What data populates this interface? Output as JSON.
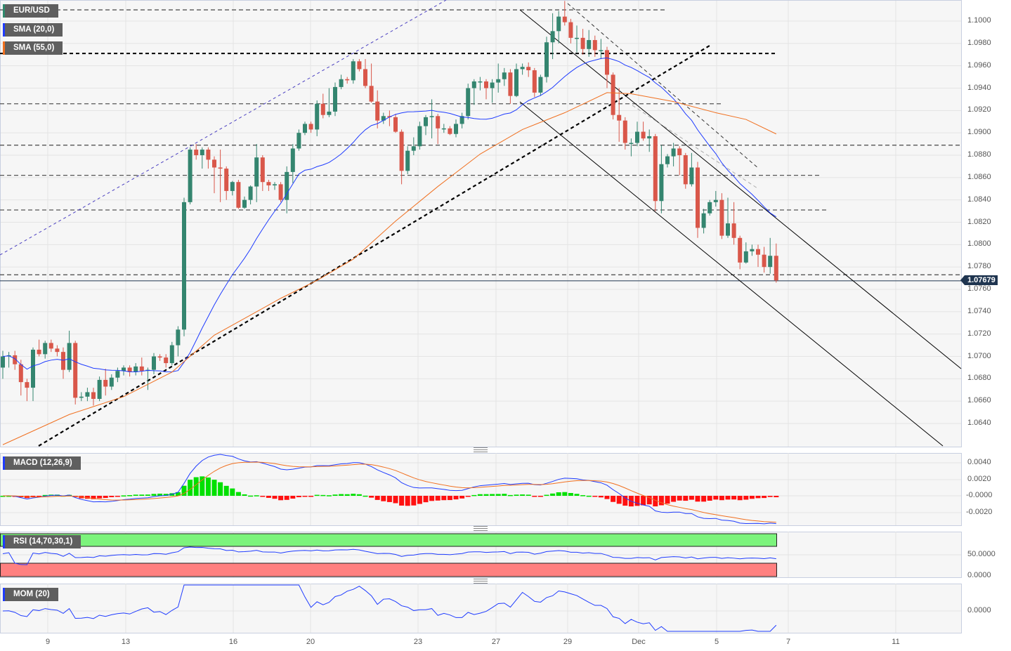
{
  "symbol": "EUR/USD",
  "legends": {
    "price": "EUR/USD",
    "sma20": "SMA (20,0)",
    "sma55": "SMA (55,0)",
    "macd": "MACD (12,26,9)",
    "rsi": "RSI (14,70,30,1)",
    "mom": "MOM (20)"
  },
  "colors": {
    "up": "#34856f",
    "down": "#d9574a",
    "sma20": "#1f3cff",
    "sma55": "#f07020",
    "macd_line": "#1f3cff",
    "signal_line": "#f07020",
    "hist_up": "#00e000",
    "hist_down": "#ff1010",
    "rsi_overbought_band": "#7cf47c",
    "rsi_oversold_band": "#ff8080",
    "last_price_bg": "#1f3550"
  },
  "last_price": "1.07679",
  "price_axis_ticks": [
    "1.1000",
    "1.0980",
    "1.0960",
    "1.0940",
    "1.0920",
    "1.0900",
    "1.0880",
    "1.0860",
    "1.0840",
    "1.0820",
    "1.0800",
    "1.0780",
    "1.0760",
    "1.0740",
    "1.0720",
    "1.0700",
    "1.0680",
    "1.0660",
    "1.0640"
  ],
  "macd_axis_ticks": [
    "0.0040",
    "0.0020",
    "-0.0000",
    "-0.0020"
  ],
  "rsi_axis_ticks": [
    "50.0000",
    "0.0000"
  ],
  "mom_axis_ticks": [
    "0.0000"
  ],
  "x_axis_labels": [
    "9",
    "13",
    "16",
    "20",
    "23",
    "27",
    "29",
    "Dec",
    "5",
    "7",
    "11"
  ],
  "chart_data": {
    "type": "candlestick",
    "title": "EUR/USD",
    "ylim": [
      1.0622,
      1.1018
    ],
    "grid": true,
    "indicators": [
      "SMA (20,0)",
      "SMA (55,0)",
      "MACD (12,26,9)",
      "RSI (14,70,30,1)",
      "MOM (20)"
    ],
    "rsi_levels": [
      70,
      30
    ],
    "horizontal_levels": [
      1.101,
      1.0971,
      1.0926,
      1.0889,
      1.0862,
      1.0831,
      1.0773
    ],
    "ohlc": [
      [
        1.069,
        1.0705,
        1.068,
        1.07
      ],
      [
        1.07,
        1.0704,
        1.069,
        1.0701
      ],
      [
        1.0701,
        1.0705,
        1.0688,
        1.0693
      ],
      [
        1.0693,
        1.0697,
        1.0665,
        1.0677
      ],
      [
        1.0677,
        1.068,
        1.066,
        1.0672
      ],
      [
        1.0672,
        1.0708,
        1.066,
        1.0706
      ],
      [
        1.0706,
        1.0715,
        1.07,
        1.0702
      ],
      [
        1.0702,
        1.0714,
        1.0698,
        1.0712
      ],
      [
        1.0712,
        1.0715,
        1.0704,
        1.0707
      ],
      [
        1.0707,
        1.071,
        1.07,
        1.0704
      ],
      [
        1.0704,
        1.0708,
        1.068,
        1.0688
      ],
      [
        1.0688,
        1.0723,
        1.0686,
        1.0712
      ],
      [
        1.0712,
        1.0714,
        1.0657,
        1.0663
      ],
      [
        1.0663,
        1.0668,
        1.066,
        1.0664
      ],
      [
        1.0664,
        1.0672,
        1.066,
        1.0668
      ],
      [
        1.0668,
        1.0672,
        1.0656,
        1.0662
      ],
      [
        1.0662,
        1.0682,
        1.066,
        1.0679
      ],
      [
        1.0679,
        1.0689,
        1.0665,
        1.0673
      ],
      [
        1.0673,
        1.0684,
        1.067,
        1.0681
      ],
      [
        1.0681,
        1.069,
        1.0677,
        1.0687
      ],
      [
        1.0687,
        1.0692,
        1.0683,
        1.069
      ],
      [
        1.069,
        1.0692,
        1.0682,
        1.0686
      ],
      [
        1.0686,
        1.0694,
        1.0683,
        1.0691
      ],
      [
        1.0691,
        1.0699,
        1.0683,
        1.0687
      ],
      [
        1.0687,
        1.069,
        1.067,
        1.0688
      ],
      [
        1.0688,
        1.0703,
        1.0684,
        1.07
      ],
      [
        1.07,
        1.0702,
        1.0696,
        1.0699
      ],
      [
        1.0699,
        1.0702,
        1.069,
        1.0694
      ],
      [
        1.0694,
        1.0713,
        1.0692,
        1.071
      ],
      [
        1.071,
        1.0727,
        1.07,
        1.0724
      ],
      [
        1.0724,
        1.0842,
        1.0718,
        1.0838
      ],
      [
        1.0838,
        1.0887,
        1.0836,
        1.0885
      ],
      [
        1.0885,
        1.089,
        1.0876,
        1.088
      ],
      [
        1.088,
        1.0887,
        1.0868,
        1.0885
      ],
      [
        1.0885,
        1.0887,
        1.0868,
        1.0876
      ],
      [
        1.0876,
        1.0879,
        1.0846,
        1.0869
      ],
      [
        1.0869,
        1.0885,
        1.0838,
        1.0868
      ],
      [
        1.0868,
        1.087,
        1.084,
        1.0848
      ],
      [
        1.0848,
        1.0857,
        1.0844,
        1.0856
      ],
      [
        1.0856,
        1.0858,
        1.0832,
        1.0833
      ],
      [
        1.0833,
        1.0843,
        1.0832,
        1.084
      ],
      [
        1.084,
        1.0853,
        1.0836,
        1.0852
      ],
      [
        1.0852,
        1.089,
        1.0838,
        1.0878
      ],
      [
        1.0878,
        1.088,
        1.0848,
        1.0856
      ],
      [
        1.0856,
        1.0858,
        1.0848,
        1.0853
      ],
      [
        1.0853,
        1.0856,
        1.0849,
        1.0854
      ],
      [
        1.0854,
        1.0856,
        1.0838,
        1.084
      ],
      [
        1.084,
        1.087,
        1.0828,
        1.0865
      ],
      [
        1.0865,
        1.089,
        1.0855,
        1.0886
      ],
      [
        1.0886,
        1.0903,
        1.0884,
        1.09
      ],
      [
        1.09,
        1.091,
        1.0898,
        1.0908
      ],
      [
        1.0908,
        1.091,
        1.09,
        1.0903
      ],
      [
        1.0903,
        1.0929,
        1.0897,
        1.0926
      ],
      [
        1.0926,
        1.0935,
        1.0913,
        1.0916
      ],
      [
        1.0916,
        1.094,
        1.0914,
        1.0919
      ],
      [
        1.0919,
        1.0945,
        1.0915,
        1.0941
      ],
      [
        1.0941,
        1.0952,
        1.0939,
        1.0948
      ],
      [
        1.0948,
        1.095,
        1.0944,
        1.0947
      ],
      [
        1.0947,
        1.0966,
        1.0944,
        1.0964
      ],
      [
        1.0964,
        1.0966,
        1.0955,
        1.0957
      ],
      [
        1.0957,
        1.0966,
        1.094,
        1.0942
      ],
      [
        1.0942,
        1.0962,
        1.0927,
        1.0928
      ],
      [
        1.0928,
        1.0938,
        1.0904,
        1.0911
      ],
      [
        1.0911,
        1.0918,
        1.0908,
        1.0915
      ],
      [
        1.0915,
        1.092,
        1.0906,
        1.0914
      ],
      [
        1.0914,
        1.0917,
        1.09,
        1.0901
      ],
      [
        1.0901,
        1.0903,
        1.0854,
        1.0866
      ],
      [
        1.0866,
        1.0888,
        1.0863,
        1.0884
      ],
      [
        1.0884,
        1.0896,
        1.088,
        1.0888
      ],
      [
        1.0888,
        1.091,
        1.0885,
        1.0906
      ],
      [
        1.0906,
        1.0916,
        1.0898,
        1.0914
      ],
      [
        1.0914,
        1.093,
        1.0895,
        1.0915
      ],
      [
        1.0915,
        1.0917,
        1.089,
        1.0904
      ],
      [
        1.0904,
        1.0908,
        1.09,
        1.0904
      ],
      [
        1.0904,
        1.0906,
        1.0898,
        1.0899
      ],
      [
        1.0899,
        1.0912,
        1.0896,
        1.0908
      ],
      [
        1.0908,
        1.0918,
        1.0904,
        1.0915
      ],
      [
        1.0915,
        1.0944,
        1.0912,
        1.094
      ],
      [
        1.094,
        1.0948,
        1.0925,
        1.0946
      ],
      [
        1.0946,
        1.095,
        1.0938,
        1.0946
      ],
      [
        1.0946,
        1.0948,
        1.093,
        1.094
      ],
      [
        1.094,
        1.0948,
        1.0927,
        1.0945
      ],
      [
        1.0945,
        1.0962,
        1.0936,
        1.0948
      ],
      [
        1.0948,
        1.0958,
        1.0942,
        1.0954
      ],
      [
        1.0954,
        1.0957,
        1.0926,
        1.0933
      ],
      [
        1.0933,
        1.0962,
        1.0932,
        1.0957
      ],
      [
        1.0957,
        1.0962,
        1.0952,
        1.0959
      ],
      [
        1.0959,
        1.0963,
        1.095,
        1.0956
      ],
      [
        1.0956,
        1.0958,
        1.0932,
        1.0936
      ],
      [
        1.0936,
        1.0952,
        1.0933,
        1.095
      ],
      [
        1.095,
        1.0986,
        1.0945,
        1.0981
      ],
      [
        1.0981,
        1.1007,
        1.0966,
        1.0991
      ],
      [
        1.0991,
        1.1009,
        1.098,
        1.1004
      ],
      [
        1.1004,
        1.1018,
        1.0996,
        1.0999
      ],
      [
        1.0999,
        1.1002,
        1.098,
        1.0985
      ],
      [
        1.0985,
        1.0996,
        1.0972,
        1.0985
      ],
      [
        1.0985,
        1.0993,
        1.097,
        1.0975
      ],
      [
        1.0975,
        1.0992,
        1.0968,
        1.0983
      ],
      [
        1.0983,
        1.0987,
        1.0968,
        1.0974
      ],
      [
        1.0974,
        1.0984,
        1.0966,
        1.0974
      ],
      [
        1.0974,
        1.0977,
        1.094,
        1.0952
      ],
      [
        1.0952,
        1.0954,
        1.0912,
        1.0916
      ],
      [
        1.0916,
        1.094,
        1.0892,
        1.0911
      ],
      [
        1.0911,
        1.0914,
        1.0885,
        1.0891
      ],
      [
        1.0891,
        1.0895,
        1.0879,
        1.0891
      ],
      [
        1.0891,
        1.091,
        1.0888,
        1.0901
      ],
      [
        1.0901,
        1.091,
        1.0893,
        1.0895
      ],
      [
        1.0895,
        1.0903,
        1.0883,
        1.0897
      ],
      [
        1.0897,
        1.0899,
        1.083,
        1.0839
      ],
      [
        1.0839,
        1.0889,
        1.0828,
        1.0872
      ],
      [
        1.0872,
        1.0881,
        1.0869,
        1.0879
      ],
      [
        1.0879,
        1.0891,
        1.087,
        1.0886
      ],
      [
        1.0886,
        1.0888,
        1.0862,
        1.088
      ],
      [
        1.088,
        1.0882,
        1.085,
        1.0854
      ],
      [
        1.0854,
        1.0882,
        1.0852,
        1.0869
      ],
      [
        1.0869,
        1.0874,
        1.0806,
        1.0815
      ],
      [
        1.0815,
        1.0832,
        1.081,
        1.0828
      ],
      [
        1.0828,
        1.084,
        1.0826,
        1.0838
      ],
      [
        1.0838,
        1.0848,
        1.0834,
        1.084
      ],
      [
        1.084,
        1.0846,
        1.0805,
        1.0808
      ],
      [
        1.0808,
        1.0842,
        1.0806,
        1.0819
      ],
      [
        1.0819,
        1.0838,
        1.08,
        1.0806
      ],
      [
        1.0806,
        1.0808,
        1.0778,
        1.0784
      ],
      [
        1.0784,
        1.0802,
        1.0783,
        1.0794
      ],
      [
        1.0794,
        1.08,
        1.079,
        1.0796
      ],
      [
        1.0796,
        1.08,
        1.078,
        1.0791
      ],
      [
        1.0791,
        1.0798,
        1.0775,
        1.078
      ],
      [
        1.078,
        1.0806,
        1.0774,
        1.079
      ],
      [
        1.079,
        1.0801,
        1.0766,
        1.0768
      ]
    ],
    "sma55": [
      [
        0,
        1.0621
      ],
      [
        11,
        1.0648
      ],
      [
        20,
        1.0664
      ],
      [
        28,
        1.0686
      ],
      [
        35,
        1.0719
      ],
      [
        46,
        1.0752
      ],
      [
        52,
        1.0768
      ],
      [
        58,
        1.0787
      ],
      [
        65,
        1.0821
      ],
      [
        72,
        1.0852
      ],
      [
        79,
        1.0881
      ],
      [
        86,
        1.0903
      ],
      [
        93,
        1.0918
      ],
      [
        100,
        1.0936
      ],
      [
        104,
        1.0935
      ],
      [
        111,
        1.0928
      ],
      [
        118,
        1.0918
      ],
      [
        123,
        1.0912
      ],
      [
        128,
        1.0899
      ]
    ]
  }
}
